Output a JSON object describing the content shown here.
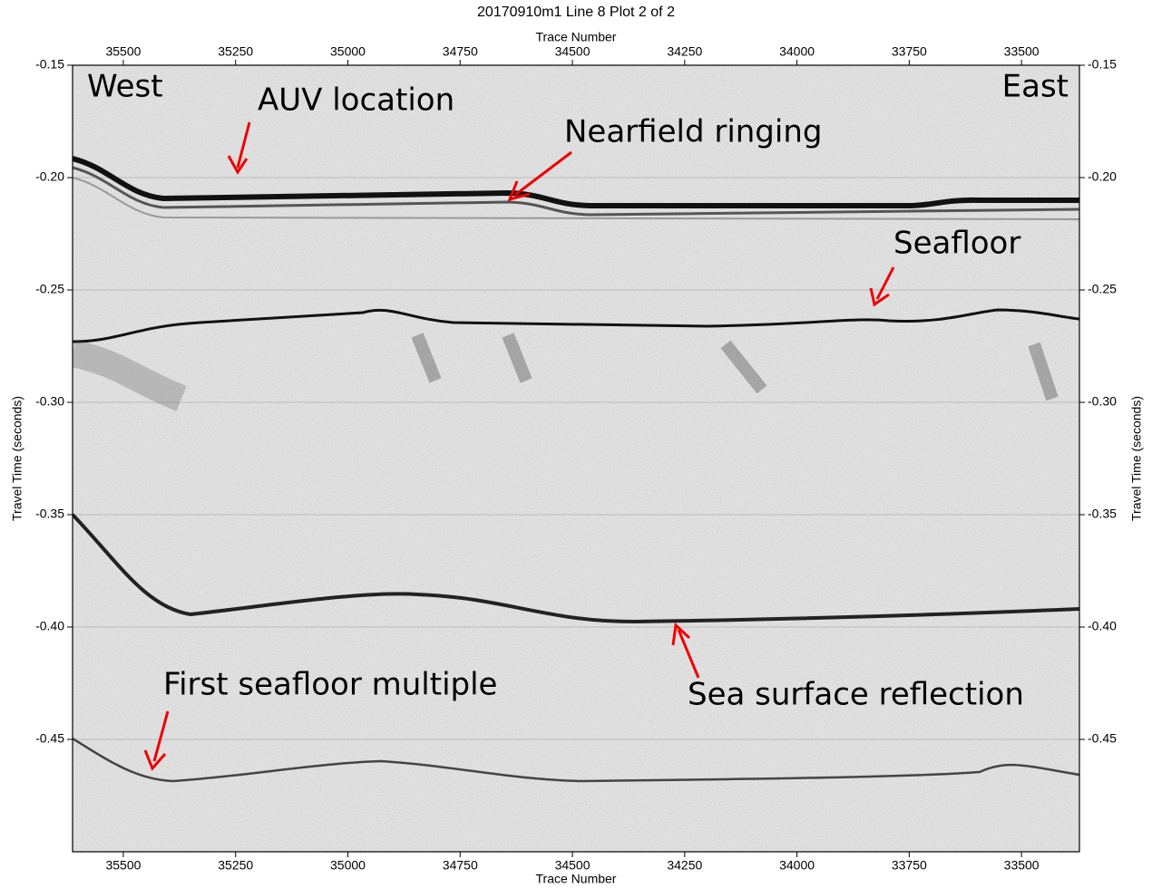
{
  "chart_data": {
    "type": "seismic",
    "title": "20170910m1 Line 8 Plot 2 of 2",
    "x_label": "Trace Number",
    "y_label": "Travel Time (seconds)",
    "xlim": [
      35613,
      33371
    ],
    "xticks": [
      35500,
      35250,
      35000,
      34750,
      34500,
      34250,
      34000,
      33750,
      33500
    ],
    "ylim": [
      -0.5,
      -0.15
    ],
    "yticks": [
      -0.15,
      {
        "value": -0.2,
        "label": "-0.20"
      },
      -0.25,
      {
        "value": -0.3,
        "label": "-0.30"
      },
      -0.35,
      {
        "value": -0.4,
        "label": "-0.40"
      },
      -0.45
    ],
    "grid": true,
    "annotations": [
      "West",
      "East",
      "AUV location",
      "Nearfield ringing",
      "Seafloor",
      "Sea surface reflection",
      "First seafloor multiple"
    ]
  }
}
